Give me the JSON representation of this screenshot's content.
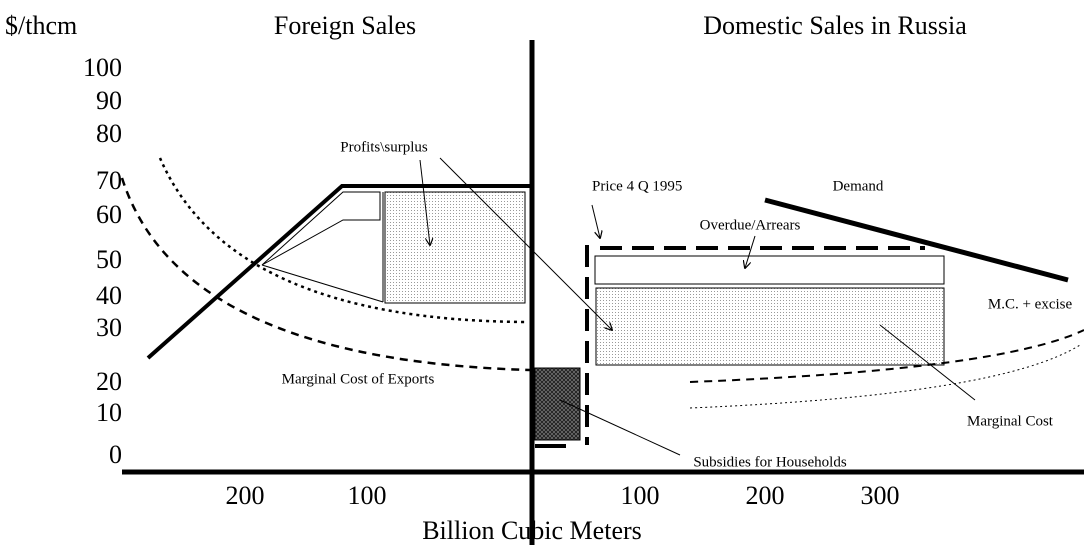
{
  "header": {
    "unit": "$/thcm",
    "left_title": "Foreign Sales",
    "right_title": "Domestic Sales in Russia"
  },
  "y_axis": {
    "labels": [
      "100",
      "90",
      "80",
      "70",
      "60",
      "50",
      "40",
      "30",
      "20",
      "10",
      "0"
    ]
  },
  "x_axis": {
    "labels": [
      "200",
      "100",
      "100",
      "200",
      "300"
    ],
    "title": "Billion Cubic Meters"
  },
  "annotations": {
    "profits": "Profits\\surplus",
    "price": "Price 4 Q 1995",
    "demand": "Demand",
    "overdue": "Overdue/Arrears",
    "mc_excise": "M.C. + excise",
    "mc_exports": "Marginal Cost of Exports",
    "mc": "Marginal Cost",
    "subsidies": "Subsidies for Households"
  }
}
